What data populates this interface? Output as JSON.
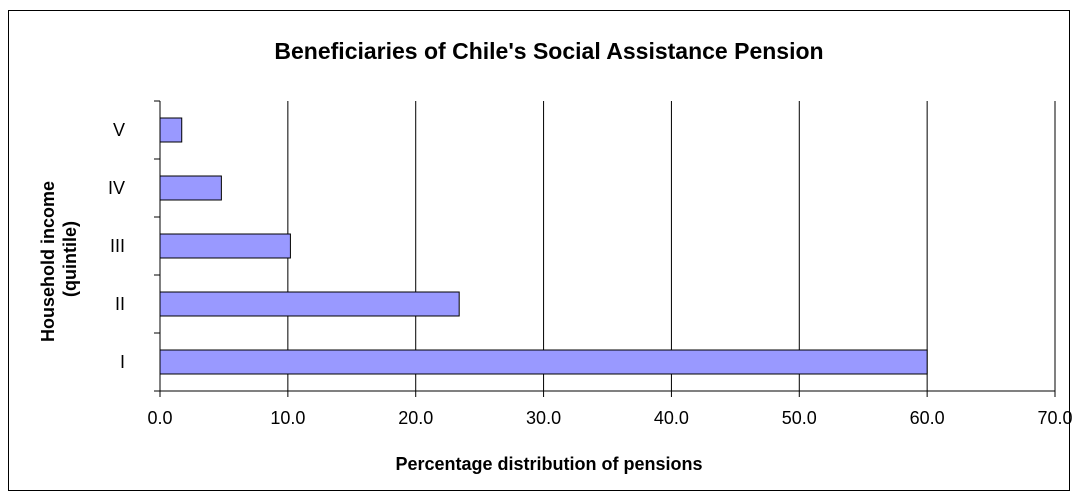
{
  "chart_data": {
    "type": "bar",
    "orientation": "horizontal",
    "title": "Beneficiaries of Chile's Social Assistance Pension",
    "xlabel": "Percentage distribution of pensions",
    "ylabel_lines": [
      "Household income",
      "(quintile)"
    ],
    "categories": [
      "V",
      "IV",
      "III",
      "II",
      "I"
    ],
    "values": [
      1.7,
      4.8,
      10.2,
      23.4,
      60.0
    ],
    "xlim": [
      0,
      70
    ],
    "xticks": [
      "0.0",
      "10.0",
      "20.0",
      "30.0",
      "40.0",
      "50.0",
      "60.0",
      "70.0"
    ],
    "grid": "vertical",
    "legend": "none",
    "bar_color": "#9999ff",
    "bar_edge_color": "#000000"
  }
}
